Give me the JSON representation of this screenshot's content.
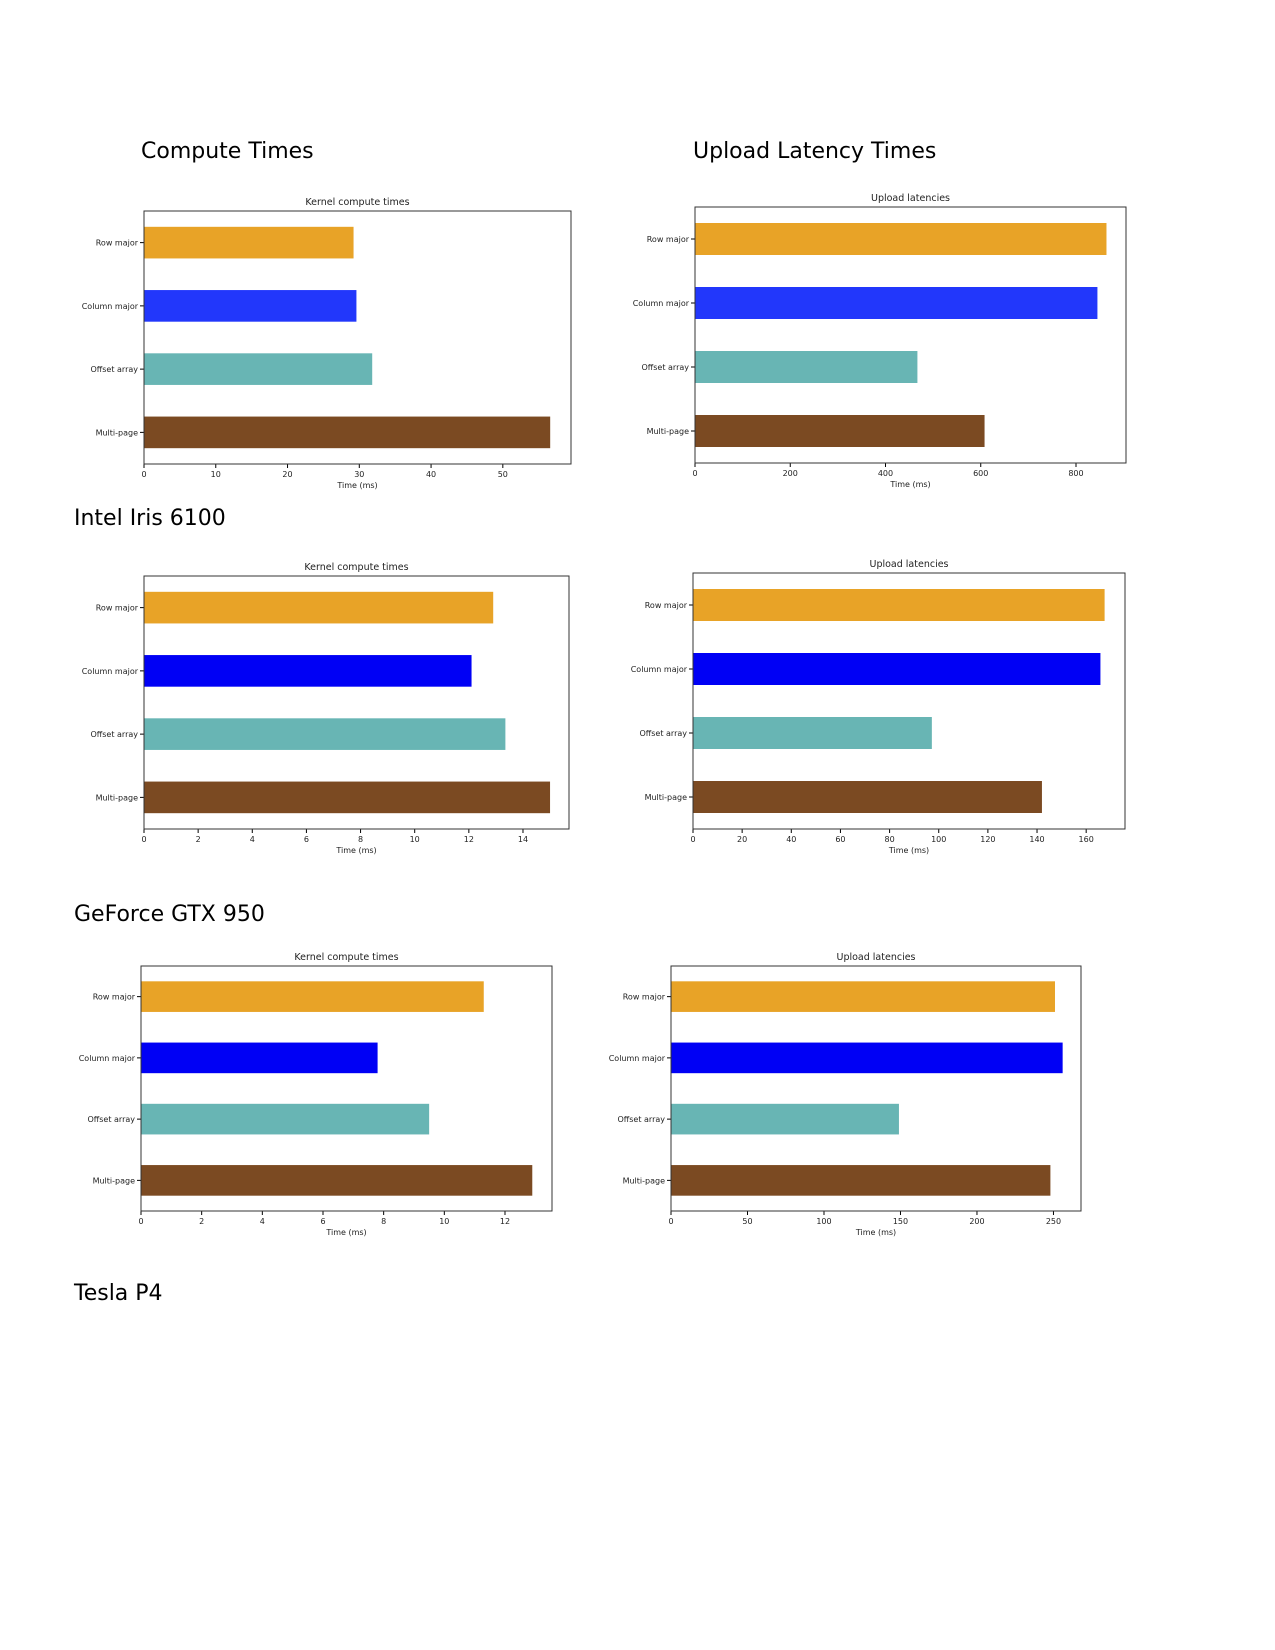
{
  "headings": {
    "compute": "Compute Times",
    "upload": "Upload Latency Times"
  },
  "devices": [
    "Intel Iris 6100",
    "GeForce GTX 950",
    "Tesla P4"
  ],
  "chart_data": [
    {
      "type": "bar",
      "orientation": "horizontal",
      "title": "Kernel compute times",
      "xlabel": "Time (ms)",
      "ylabel": "",
      "categories": [
        "Row major",
        "Column major",
        "Offset array",
        "Multi-page"
      ],
      "values": [
        29.2,
        29.6,
        31.8,
        56.6
      ],
      "colors": [
        "#e8a327",
        "#2237fb",
        "#68b5b4",
        "#7b4a22"
      ],
      "xlim": [
        0,
        59.5
      ],
      "xticks": [
        0,
        10,
        20,
        30,
        40,
        50
      ],
      "grid": false
    },
    {
      "type": "bar",
      "orientation": "horizontal",
      "title": "Upload latencies",
      "xlabel": "Time (ms)",
      "ylabel": "",
      "categories": [
        "Row major",
        "Column major",
        "Offset array",
        "Multi-page"
      ],
      "values": [
        864,
        845,
        467,
        608
      ],
      "colors": [
        "#e8a327",
        "#2237fb",
        "#68b5b4",
        "#7b4a22"
      ],
      "xlim": [
        0,
        905
      ],
      "xticks": [
        0,
        200,
        400,
        600,
        800
      ],
      "grid": false
    },
    {
      "type": "bar",
      "orientation": "horizontal",
      "title": "Kernel compute times",
      "xlabel": "Time (ms)",
      "ylabel": "",
      "categories": [
        "Row major",
        "Column major",
        "Offset array",
        "Multi-page"
      ],
      "values": [
        12.9,
        12.1,
        13.35,
        15.0
      ],
      "colors": [
        "#e8a327",
        "#0000f5",
        "#68b5b4",
        "#7b4a22"
      ],
      "xlim": [
        0,
        15.7
      ],
      "xticks": [
        0,
        2,
        4,
        6,
        8,
        10,
        12,
        14
      ],
      "grid": false
    },
    {
      "type": "bar",
      "orientation": "horizontal",
      "title": "Upload latencies",
      "xlabel": "Time (ms)",
      "ylabel": "",
      "categories": [
        "Row major",
        "Column major",
        "Offset array",
        "Multi-page"
      ],
      "values": [
        167.5,
        165.8,
        97.2,
        142.0
      ],
      "colors": [
        "#e8a327",
        "#0000f5",
        "#68b5b4",
        "#7b4a22"
      ],
      "xlim": [
        0,
        175.8
      ],
      "xticks": [
        0,
        20,
        40,
        60,
        80,
        100,
        120,
        140,
        160
      ],
      "grid": false
    },
    {
      "type": "bar",
      "orientation": "horizontal",
      "title": "Kernel compute times",
      "xlabel": "Time (ms)",
      "ylabel": "",
      "categories": [
        "Row major",
        "Column major",
        "Offset array",
        "Multi-page"
      ],
      "values": [
        11.3,
        7.8,
        9.5,
        12.9
      ],
      "colors": [
        "#e8a327",
        "#0000f5",
        "#68b5b4",
        "#7b4a22"
      ],
      "xlim": [
        0,
        13.55
      ],
      "xticks": [
        0,
        2,
        4,
        6,
        8,
        10,
        12
      ],
      "grid": false
    },
    {
      "type": "bar",
      "orientation": "horizontal",
      "title": "Upload latencies",
      "xlabel": "Time (ms)",
      "ylabel": "",
      "categories": [
        "Row major",
        "Column major",
        "Offset array",
        "Multi-page"
      ],
      "values": [
        251,
        256,
        149,
        248
      ],
      "colors": [
        "#e8a327",
        "#0000f5",
        "#68b5b4",
        "#7b4a22"
      ],
      "xlim": [
        0,
        268
      ],
      "xticks": [
        0,
        50,
        100,
        150,
        200,
        250
      ],
      "grid": false
    }
  ]
}
